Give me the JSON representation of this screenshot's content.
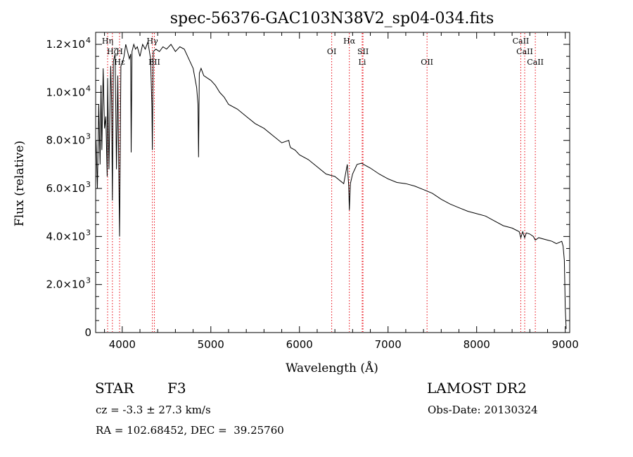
{
  "chart_data": {
    "type": "line",
    "title": "spec-56376-GAC103N38V2_sp04-034.fits",
    "xlabel": "Wavelength (Å)",
    "ylabel": "Flux (relative)",
    "xlim": [
      3700,
      9050
    ],
    "ylim": [
      0,
      12500
    ],
    "x_ticks": [
      4000,
      5000,
      6000,
      7000,
      8000,
      9000
    ],
    "x_tick_labels": [
      "4000",
      "5000",
      "6000",
      "7000",
      "8000",
      "9000"
    ],
    "y_ticks": [
      0,
      2000,
      4000,
      6000,
      8000,
      10000,
      12000
    ],
    "y_tick_labels": [
      {
        "mant": "0",
        "exp": ""
      },
      {
        "mant": "2.0×10",
        "exp": "3"
      },
      {
        "mant": "4.0×10",
        "exp": "3"
      },
      {
        "mant": "6.0×10",
        "exp": "3"
      },
      {
        "mant": "8.0×10",
        "exp": "3"
      },
      {
        "mant": "1.0×10",
        "exp": "4"
      },
      {
        "mant": "1.2×10",
        "exp": "4"
      }
    ],
    "spectrum": {
      "x": [
        3705,
        3720,
        3735,
        3750,
        3760,
        3770,
        3785,
        3800,
        3815,
        3830,
        3835,
        3850,
        3870,
        3880,
        3889,
        3900,
        3920,
        3935,
        3950,
        3960,
        3970,
        3985,
        4000,
        4020,
        4040,
        4060,
        4080,
        4095,
        4101,
        4110,
        4130,
        4150,
        4170,
        4200,
        4230,
        4260,
        4290,
        4320,
        4335,
        4340,
        4350,
        4380,
        4420,
        4460,
        4500,
        4550,
        4600,
        4650,
        4700,
        4750,
        4800,
        4840,
        4855,
        4861,
        4870,
        4890,
        4920,
        4960,
        5000,
        5050,
        5100,
        5150,
        5200,
        5300,
        5400,
        5500,
        5600,
        5700,
        5800,
        5880,
        5890,
        5900,
        5950,
        6000,
        6100,
        6200,
        6300,
        6400,
        6500,
        6540,
        6556,
        6563,
        6575,
        6600,
        6650,
        6700,
        6800,
        6900,
        7000,
        7100,
        7200,
        7300,
        7400,
        7500,
        7600,
        7700,
        7800,
        7900,
        8000,
        8100,
        8200,
        8300,
        8400,
        8480,
        8498,
        8520,
        8542,
        8560,
        8600,
        8640,
        8662,
        8700,
        8800,
        8850,
        8900,
        8960,
        8975,
        8990,
        9000,
        9010
      ],
      "y": [
        8000,
        6000,
        9500,
        7000,
        10300,
        7600,
        11000,
        8500,
        9000,
        6500,
        10600,
        6800,
        11100,
        9600,
        5500,
        11300,
        11600,
        6800,
        10700,
        7000,
        4000,
        11100,
        11200,
        11500,
        12000,
        11700,
        11400,
        11600,
        7500,
        11700,
        12000,
        11800,
        11900,
        11500,
        12000,
        11800,
        12100,
        11400,
        9400,
        7600,
        11700,
        11800,
        11700,
        11900,
        11800,
        12000,
        11700,
        11900,
        11800,
        11400,
        11000,
        10200,
        9500,
        7300,
        10800,
        11000,
        10700,
        10600,
        10500,
        10300,
        10000,
        9800,
        9500,
        9300,
        9000,
        8700,
        8500,
        8200,
        7900,
        8000,
        7800,
        7700,
        7600,
        7400,
        7200,
        6900,
        6600,
        6500,
        6200,
        7000,
        6100,
        5100,
        6200,
        6600,
        7000,
        7050,
        6850,
        6600,
        6400,
        6250,
        6200,
        6100,
        5950,
        5800,
        5550,
        5350,
        5200,
        5050,
        4950,
        4850,
        4650,
        4450,
        4350,
        4200,
        3950,
        4200,
        3950,
        4150,
        4100,
        4000,
        3850,
        3950,
        3850,
        3800,
        3700,
        3800,
        3600,
        3000,
        1000,
        150
      ]
    },
    "lines": [
      {
        "name": "Hη",
        "x": 3835
      },
      {
        "name": "Hζ",
        "x": 3889
      },
      {
        "name": "Hε",
        "x": 3970
      },
      {
        "name": "H",
        "x": 3970
      },
      {
        "name": "Hγ",
        "x": 4340
      },
      {
        "name": "BII",
        "x": 4363
      },
      {
        "name": "OI",
        "x": 6364
      },
      {
        "name": "Hα",
        "x": 6563
      },
      {
        "name": "SII",
        "x": 6717
      },
      {
        "name": "Li",
        "x": 6708
      },
      {
        "name": "OII",
        "x": 7440
      },
      {
        "name": "CaII",
        "x": 8498
      },
      {
        "name": "CaII",
        "x": 8662
      },
      {
        "name": "CaII",
        "x": 8542
      }
    ]
  },
  "footer": {
    "object_class": "STAR",
    "subclass": "F3",
    "survey": "LAMOST DR2",
    "cz_line": "cz = -3.3 ± 27.3 km/s",
    "obs_date_line": "Obs-Date: 20130324",
    "coords_line": "RA = 102.68452, DEC =  39.25760"
  },
  "colors": {
    "spectrum": "#000000",
    "line_markers": "#e8000b",
    "axes": "#000000"
  }
}
